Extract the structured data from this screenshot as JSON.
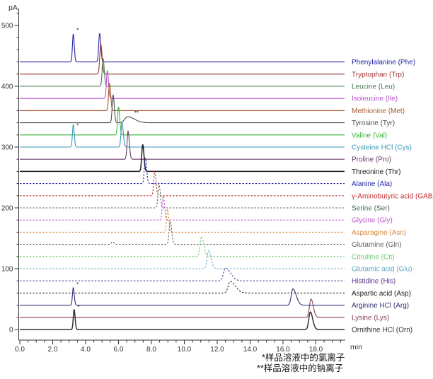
{
  "chart_data": {
    "type": "line",
    "title": "",
    "xlabel": "min",
    "ylabel": "pA",
    "xlim": [
      0,
      19.8
    ],
    "ylim": [
      0,
      530
    ],
    "grid": false,
    "legend_position": "right-of-each-trace",
    "x_major_ticks": [
      {
        "t": 0,
        "label": "0.0"
      },
      {
        "t": 2,
        "label": "2.0"
      },
      {
        "t": 4,
        "label": "4.0"
      },
      {
        "t": 6,
        "label": "6.0"
      },
      {
        "t": 8,
        "label": "8.0"
      },
      {
        "t": 10,
        "label": "10.0"
      },
      {
        "t": 12,
        "label": "12.0"
      },
      {
        "t": 14,
        "label": "14.0"
      },
      {
        "t": 16,
        "label": "16.0"
      },
      {
        "t": 18,
        "label": "18.0"
      }
    ],
    "x_minor_step": 0.5,
    "y_major_ticks": [
      {
        "v": 0,
        "label": "0"
      },
      {
        "v": 100,
        "label": "100"
      },
      {
        "v": 200,
        "label": "200"
      },
      {
        "v": 300,
        "label": "300"
      },
      {
        "v": 400,
        "label": "400"
      },
      {
        "v": 500,
        "label": "500"
      }
    ],
    "y_minor_step": 20,
    "baseline_offset_step_pA": 20,
    "series": [
      {
        "name": "Phenylalanine (Phe)",
        "color": "#2424A8",
        "style": "solid",
        "baseline": 440,
        "peaks": [
          {
            "t": 3.25,
            "h": 46,
            "s": 0.05,
            "tail": 1.2
          },
          {
            "t": 4.85,
            "h": 47,
            "s": 0.055,
            "tail": 1.3
          }
        ],
        "markers": [
          {
            "label": "*",
            "t": 3.45,
            "v": 489
          }
        ]
      },
      {
        "name": "Tryptophan (Trp)",
        "color": "#A03838",
        "style": "solid",
        "baseline": 420,
        "peaks": [
          {
            "t": 4.92,
            "h": 50,
            "s": 0.06,
            "tail": 1.3
          }
        ],
        "markers": []
      },
      {
        "name": "Leucine (Leu)",
        "color": "#4E7B50",
        "style": "solid",
        "baseline": 400,
        "peaks": [
          {
            "t": 5.06,
            "h": 46,
            "s": 0.055,
            "tail": 1.3
          }
        ],
        "markers": []
      },
      {
        "name": "Isoleucine (Ile)",
        "color": "#B855CC",
        "style": "solid",
        "baseline": 380,
        "peaks": [
          {
            "t": 5.32,
            "h": 46,
            "s": 0.055,
            "tail": 1.3
          }
        ],
        "markers": []
      },
      {
        "name": "Methionine (Met)",
        "color": "#A8562E",
        "style": "solid",
        "baseline": 360,
        "peaks": [
          {
            "t": 5.45,
            "h": 45,
            "s": 0.055,
            "tail": 1.3
          }
        ],
        "markers": []
      },
      {
        "name": "Tyrosine (Tyr)",
        "color": "#4D4D4D",
        "style": "solid",
        "baseline": 340,
        "peaks": [
          {
            "t": 5.67,
            "h": 46,
            "s": 0.055,
            "tail": 1.3
          },
          {
            "t": 6.55,
            "h": 10,
            "s": 0.17,
            "tail": 2.4
          }
        ],
        "markers": [
          {
            "label": "**",
            "t": 6.95,
            "v": 353
          }
        ]
      },
      {
        "name": "Valine (Val)",
        "color": "#38B438",
        "style": "solid",
        "baseline": 320,
        "peaks": [
          {
            "t": 6.0,
            "h": 46,
            "s": 0.055,
            "tail": 1.3
          }
        ],
        "markers": []
      },
      {
        "name": "Cysteine HCl (Cys)",
        "color": "#3898B8",
        "style": "solid",
        "baseline": 300,
        "peaks": [
          {
            "t": 3.25,
            "h": 37,
            "s": 0.05,
            "tail": 1.2
          },
          {
            "t": 6.21,
            "h": 41,
            "s": 0.06,
            "tail": 1.3
          }
        ],
        "markers": [
          {
            "label": "*",
            "t": 3.45,
            "v": 332
          }
        ]
      },
      {
        "name": "Proline (Pro)",
        "color": "#6A3A6A",
        "style": "solid",
        "baseline": 280,
        "peaks": [
          {
            "t": 6.58,
            "h": 46,
            "s": 0.06,
            "tail": 1.3
          }
        ],
        "markers": []
      },
      {
        "name": "Threonine (Thr)",
        "color": "#1A1A1A",
        "style": "solid",
        "baseline": 260,
        "peaks": [
          {
            "t": 7.47,
            "h": 44,
            "s": 0.06,
            "tail": 1.3
          }
        ],
        "markers": []
      },
      {
        "name": "Alanine (Ala)",
        "color": "#2424A8",
        "style": "dashed",
        "baseline": 240,
        "peaks": [
          {
            "t": 7.63,
            "h": 42,
            "s": 0.06,
            "tail": 1.3
          }
        ],
        "markers": []
      },
      {
        "name": "γ-Aminobutyric acid (GABA)",
        "color": "#C02E2E",
        "style": "dashed",
        "baseline": 220,
        "peaks": [
          {
            "t": 8.2,
            "h": 40,
            "s": 0.06,
            "tail": 1.3
          }
        ],
        "markers": []
      },
      {
        "name": "Serine (Ser)",
        "color": "#486B4A",
        "style": "dashed",
        "baseline": 200,
        "peaks": [
          {
            "t": 8.46,
            "h": 40,
            "s": 0.06,
            "tail": 1.3
          }
        ],
        "markers": []
      },
      {
        "name": "Glycine (Gly)",
        "color": "#B855CC",
        "style": "dashed",
        "baseline": 180,
        "peaks": [
          {
            "t": 8.72,
            "h": 40,
            "s": 0.06,
            "tail": 1.3
          }
        ],
        "markers": []
      },
      {
        "name": "Asparagine (Asn)",
        "color": "#D8883C",
        "style": "dashed",
        "baseline": 160,
        "peaks": [
          {
            "t": 8.98,
            "h": 38,
            "s": 0.06,
            "tail": 1.3
          }
        ],
        "markers": []
      },
      {
        "name": "Glutamine (Gln)",
        "color": "#606060",
        "style": "dashed",
        "baseline": 140,
        "peaks": [
          {
            "t": 5.63,
            "h": 4,
            "s": 0.07,
            "tail": 1.3
          },
          {
            "t": 9.14,
            "h": 38,
            "s": 0.065,
            "tail": 1.4
          }
        ],
        "markers": []
      },
      {
        "name": "Citrulline (Cit)",
        "color": "#70C878",
        "style": "dashed",
        "baseline": 120,
        "peaks": [
          {
            "t": 11.05,
            "h": 33,
            "s": 0.09,
            "tail": 1.5
          }
        ],
        "markers": []
      },
      {
        "name": "Glutamic acid (Glu)",
        "color": "#60A8C0",
        "style": "dashed",
        "baseline": 100,
        "peaks": [
          {
            "t": 11.48,
            "h": 30,
            "s": 0.095,
            "tail": 1.5
          }
        ],
        "markers": []
      },
      {
        "name": "Histidine (His)",
        "color": "#5C3890",
        "style": "dashed",
        "baseline": 80,
        "peaks": [
          {
            "t": 12.5,
            "h": 21,
            "s": 0.12,
            "tail": 2.6
          }
        ],
        "markers": []
      },
      {
        "name": "Aspartic acid (Asp)",
        "color": "#1A1A1A",
        "style": "dashed",
        "baseline": 60,
        "peaks": [
          {
            "t": 12.79,
            "h": 19,
            "s": 0.12,
            "tail": 2.6
          }
        ],
        "markers": []
      },
      {
        "name": "Arginine HCl (Arg)",
        "color": "#303078",
        "style": "solid",
        "baseline": 40,
        "peaks": [
          {
            "t": 3.25,
            "h": 29,
            "s": 0.05,
            "tail": 1.2
          },
          {
            "t": 16.6,
            "h": 27,
            "s": 0.1,
            "tail": 2.0
          }
        ],
        "markers": [
          {
            "label": "*",
            "t": 3.45,
            "v": 71
          }
        ]
      },
      {
        "name": "Lysine (Lys)",
        "color": "#8B4056",
        "style": "solid",
        "baseline": 20,
        "peaks": [
          {
            "t": 17.7,
            "h": 30,
            "s": 0.09,
            "tail": 1.6
          }
        ],
        "markers": []
      },
      {
        "name": "Ornithine HCl (Orn)",
        "color": "#303030",
        "style": "solid",
        "baseline": 0,
        "peaks": [
          {
            "t": 3.3,
            "h": 33,
            "s": 0.05,
            "tail": 1.2
          },
          {
            "t": 17.66,
            "h": 29,
            "s": 0.09,
            "tail": 1.6
          }
        ],
        "markers": [
          {
            "label": "*",
            "t": 3.5,
            "v": 34
          }
        ]
      }
    ]
  },
  "footnotes": {
    "line1": "*样品溶液中的氯离子",
    "line2": "**样品溶液中的钠离子"
  }
}
